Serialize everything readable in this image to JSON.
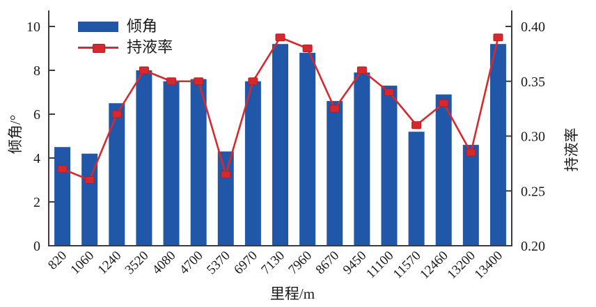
{
  "chart_data": {
    "type": "bar",
    "subtype": "combo-bar-line-dual-axis",
    "title": "",
    "xlabel": "里程/m",
    "categories": [
      "820",
      "1060",
      "1240",
      "3520",
      "4080",
      "4700",
      "5370",
      "6970",
      "7130",
      "7960",
      "8670",
      "9450",
      "11100",
      "11570",
      "12460",
      "13200",
      "13400"
    ],
    "series": [
      {
        "name": "倾角",
        "type": "bar",
        "axis": "left",
        "values": [
          4.5,
          4.2,
          6.5,
          8.0,
          7.5,
          7.6,
          4.3,
          7.5,
          9.2,
          8.8,
          6.6,
          7.9,
          7.3,
          5.2,
          6.9,
          4.6,
          9.2
        ]
      },
      {
        "name": "持液率",
        "type": "line",
        "axis": "right",
        "marker": "square",
        "values": [
          0.27,
          0.26,
          0.32,
          0.36,
          0.35,
          0.35,
          0.265,
          0.35,
          0.39,
          0.38,
          0.325,
          0.36,
          0.34,
          0.31,
          0.33,
          0.285,
          0.39
        ]
      }
    ],
    "left_axis": {
      "label": "倾角/°",
      "min": 0,
      "max": 10,
      "tick_labels": [
        "0",
        "2",
        "4",
        "6",
        "8",
        "10"
      ],
      "tick_values": [
        0,
        2,
        4,
        6,
        8,
        10
      ]
    },
    "right_axis": {
      "label": "持液率",
      "min": 0.2,
      "max": 0.4,
      "tick_labels": [
        "0.20",
        "0.25",
        "0.30",
        "0.35",
        "0.40"
      ],
      "tick_values": [
        0.2,
        0.25,
        0.3,
        0.35,
        0.4
      ]
    },
    "legend_position": "top-left-inside",
    "grid": false,
    "colors": {
      "bar": "#2157a8",
      "line": "#d9282d",
      "marker_edge": "#b21d22",
      "axis": "#3c3c3c",
      "text": "#1a1a1a",
      "background": "#ffffff"
    }
  }
}
